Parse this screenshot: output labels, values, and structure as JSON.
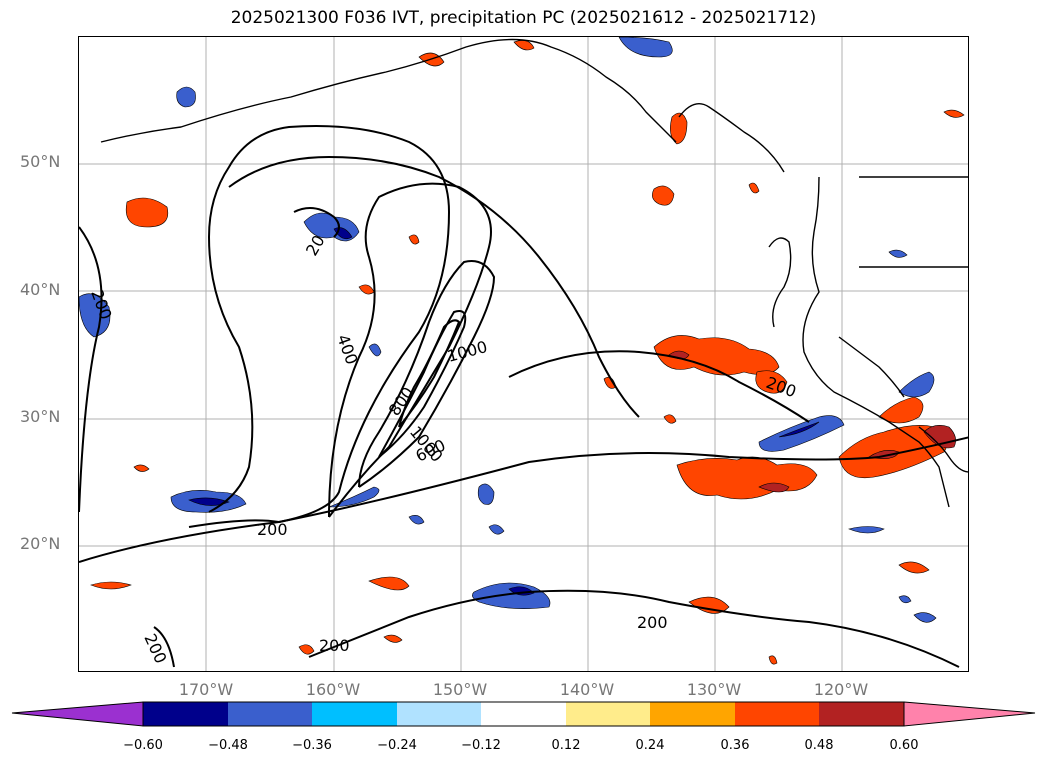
{
  "title": "2025021300 F036 IVT, precipitation PC (2025021612 - 2025021712)",
  "lat_labels": [
    "50°N",
    "40°N",
    "30°N",
    "20°N"
  ],
  "lon_labels": [
    "170°W",
    "160°W",
    "150°W",
    "140°W",
    "130°W",
    "120°W"
  ],
  "ivt_contour_labels": [
    "200",
    "400",
    "1000",
    "800",
    "1000",
    "600",
    "20",
    "200",
    "200",
    "200",
    "200"
  ],
  "colorbar": {
    "ticks": [
      "−0.60",
      "−0.48",
      "−0.36",
      "−0.24",
      "−0.12",
      "0.12",
      "0.24",
      "0.36",
      "0.48",
      "0.60"
    ],
    "colors": [
      "#9b30d0",
      "#00008b",
      "#3a5fcd",
      "#00bfff",
      "#b0e2ff",
      "#ffffff",
      "#ffec8b",
      "#ffa500",
      "#ff4500",
      "#b22222",
      "#ff82ab"
    ]
  }
}
